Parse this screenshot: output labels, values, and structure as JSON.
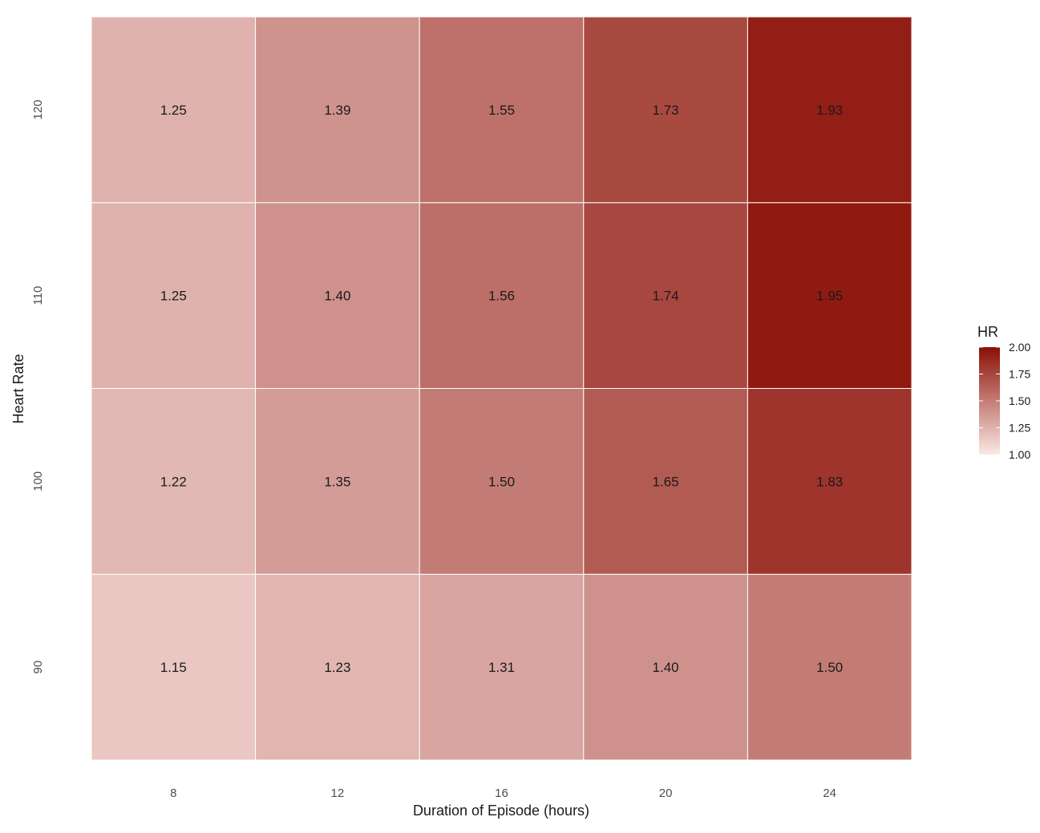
{
  "chart_data": {
    "type": "heatmap",
    "x": [
      8,
      12,
      16,
      20,
      24
    ],
    "x_tick_labels": [
      "8",
      "12",
      "16",
      "20",
      "24"
    ],
    "y": [
      90,
      100,
      110,
      120
    ],
    "y_tick_labels": [
      "90",
      "100",
      "110",
      "120"
    ],
    "xlabel": "Duration of Episode (hours)",
    "ylabel": "Heart Rate",
    "values": [
      [
        1.15,
        1.23,
        1.31,
        1.4,
        1.5
      ],
      [
        1.22,
        1.35,
        1.5,
        1.65,
        1.83
      ],
      [
        1.25,
        1.4,
        1.56,
        1.74,
        1.95
      ],
      [
        1.25,
        1.39,
        1.55,
        1.73,
        1.93
      ]
    ],
    "cell_labels": [
      [
        "1.15",
        "1.23",
        "1.31",
        "1.40",
        "1.50"
      ],
      [
        "1.22",
        "1.35",
        "1.50",
        "1.65",
        "1.83"
      ],
      [
        "1.25",
        "1.40",
        "1.56",
        "1.74",
        "1.95"
      ],
      [
        "1.25",
        "1.39",
        "1.55",
        "1.73",
        "1.93"
      ]
    ],
    "color_scale": {
      "low": "#fbe8e5",
      "high": "#8b0f05",
      "domain": [
        1.0,
        2.0
      ]
    },
    "legend": {
      "title": "HR",
      "position": "right",
      "ticks": [
        "2.00",
        "1.75",
        "1.50",
        "1.25",
        "1.00"
      ],
      "tick_values": [
        2.0,
        1.75,
        1.5,
        1.25,
        1.0
      ]
    },
    "grid": false
  }
}
